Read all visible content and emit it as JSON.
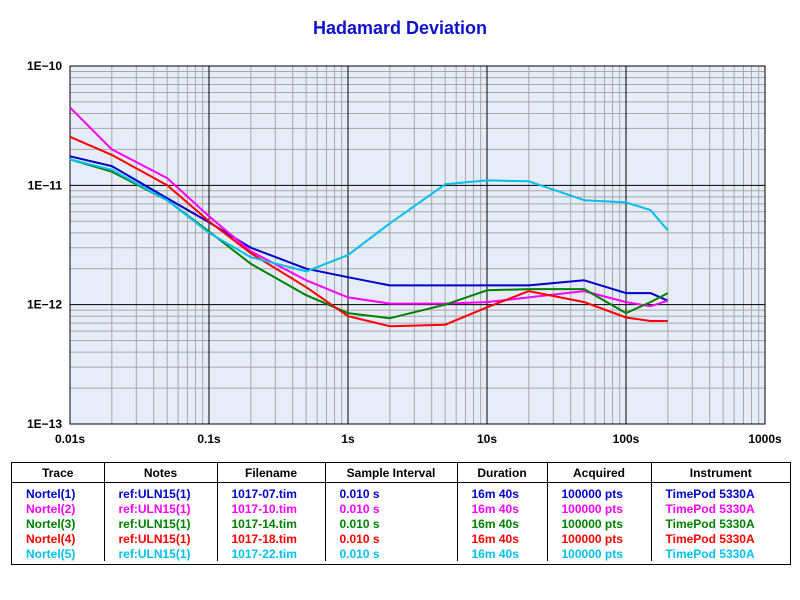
{
  "chart_data": {
    "type": "line",
    "title": "Hadamard Deviation",
    "xscale": "log",
    "yscale": "log",
    "xlim": [
      0.01,
      1000
    ],
    "ylim": [
      1e-13,
      1e-10
    ],
    "grid": true,
    "x_tick_labels": [
      "0.01s",
      "0.1s",
      "1s",
      "10s",
      "100s",
      "1000s"
    ],
    "y_tick_labels": [
      "1E−13",
      "1E−12",
      "1E−11",
      "1E−10"
    ],
    "series": [
      {
        "name": "Nortel(1)",
        "color": "#0000cc",
        "points": [
          [
            0.01,
            1.75e-11
          ],
          [
            0.02,
            1.45e-11
          ],
          [
            0.05,
            7.8e-12
          ],
          [
            0.1,
            4.9e-12
          ],
          [
            0.2,
            3e-12
          ],
          [
            0.5,
            2e-12
          ],
          [
            1,
            1.7e-12
          ],
          [
            2,
            1.45e-12
          ],
          [
            5,
            1.45e-12
          ],
          [
            10,
            1.45e-12
          ],
          [
            20,
            1.45e-12
          ],
          [
            50,
            1.6e-12
          ],
          [
            100,
            1.25e-12
          ],
          [
            150,
            1.25e-12
          ],
          [
            200,
            1.08e-12
          ]
        ]
      },
      {
        "name": "Nortel(2)",
        "color": "#ff00ff",
        "points": [
          [
            0.01,
            4.5e-11
          ],
          [
            0.02,
            2e-11
          ],
          [
            0.05,
            1.15e-11
          ],
          [
            0.1,
            5.5e-12
          ],
          [
            0.2,
            2.8e-12
          ],
          [
            0.5,
            1.6e-12
          ],
          [
            1,
            1.15e-12
          ],
          [
            2,
            1.02e-12
          ],
          [
            5,
            1.02e-12
          ],
          [
            10,
            1.05e-12
          ],
          [
            20,
            1.15e-12
          ],
          [
            50,
            1.3e-12
          ],
          [
            100,
            1.05e-12
          ],
          [
            150,
            9.7e-13
          ],
          [
            200,
            1.08e-12
          ]
        ]
      },
      {
        "name": "Nortel(3)",
        "color": "#008000",
        "points": [
          [
            0.01,
            1.65e-11
          ],
          [
            0.02,
            1.3e-11
          ],
          [
            0.05,
            7.5e-12
          ],
          [
            0.1,
            4.1e-12
          ],
          [
            0.2,
            2.2e-12
          ],
          [
            0.5,
            1.2e-12
          ],
          [
            1,
            8.5e-13
          ],
          [
            2,
            7.7e-13
          ],
          [
            5,
            1e-12
          ],
          [
            10,
            1.32e-12
          ],
          [
            20,
            1.35e-12
          ],
          [
            50,
            1.35e-12
          ],
          [
            100,
            8.5e-13
          ],
          [
            150,
            1.05e-12
          ],
          [
            200,
            1.25e-12
          ]
        ]
      },
      {
        "name": "Nortel(4)",
        "color": "#ff0000",
        "points": [
          [
            0.01,
            2.55e-11
          ],
          [
            0.02,
            1.8e-11
          ],
          [
            0.05,
            1e-11
          ],
          [
            0.1,
            5e-12
          ],
          [
            0.2,
            2.7e-12
          ],
          [
            0.5,
            1.4e-12
          ],
          [
            1,
            8e-13
          ],
          [
            2,
            6.6e-13
          ],
          [
            5,
            6.8e-13
          ],
          [
            10,
            9.5e-13
          ],
          [
            20,
            1.3e-12
          ],
          [
            50,
            1.05e-12
          ],
          [
            100,
            7.8e-13
          ],
          [
            150,
            7.3e-13
          ],
          [
            200,
            7.3e-13
          ]
        ]
      },
      {
        "name": "Nortel(5)",
        "color": "#00c0f0",
        "points": [
          [
            0.01,
            1.65e-11
          ],
          [
            0.02,
            1.35e-11
          ],
          [
            0.05,
            7.5e-12
          ],
          [
            0.1,
            4e-12
          ],
          [
            0.2,
            2.5e-12
          ],
          [
            0.5,
            1.9e-12
          ],
          [
            1,
            2.6e-12
          ],
          [
            2,
            4.8e-12
          ],
          [
            5,
            1.02e-11
          ],
          [
            10,
            1.1e-11
          ],
          [
            20,
            1.08e-11
          ],
          [
            50,
            7.5e-12
          ],
          [
            100,
            7.2e-12
          ],
          [
            150,
            6.2e-12
          ],
          [
            200,
            4.2e-12
          ]
        ]
      }
    ]
  },
  "legend_table": {
    "headers": [
      "Trace",
      "Notes",
      "Filename",
      "Sample Interval",
      "Duration",
      "Acquired",
      "Instrument"
    ],
    "rows": [
      {
        "color": "#0000cc",
        "trace": "Nortel(1)",
        "notes": "ref:ULN15(1)",
        "filename": "1017-07.tim",
        "interval": "0.010 s",
        "duration": "16m 40s",
        "acquired": "100000 pts",
        "instrument": "TimePod 5330A"
      },
      {
        "color": "#ff00ff",
        "trace": "Nortel(2)",
        "notes": "ref:ULN15(1)",
        "filename": "1017-10.tim",
        "interval": "0.010 s",
        "duration": "16m 40s",
        "acquired": "100000 pts",
        "instrument": "TimePod 5330A"
      },
      {
        "color": "#008000",
        "trace": "Nortel(3)",
        "notes": "ref:ULN15(1)",
        "filename": "1017-14.tim",
        "interval": "0.010 s",
        "duration": "16m 40s",
        "acquired": "100000 pts",
        "instrument": "TimePod 5330A"
      },
      {
        "color": "#ff0000",
        "trace": "Nortel(4)",
        "notes": "ref:ULN15(1)",
        "filename": "1017-18.tim",
        "interval": "0.010 s",
        "duration": "16m 40s",
        "acquired": "100000 pts",
        "instrument": "TimePod 5330A"
      },
      {
        "color": "#00c0f0",
        "trace": "Nortel(5)",
        "notes": "ref:ULN15(1)",
        "filename": "1017-22.tim",
        "interval": "0.010 s",
        "duration": "16m 40s",
        "acquired": "100000 pts",
        "instrument": "TimePod 5330A"
      }
    ]
  }
}
